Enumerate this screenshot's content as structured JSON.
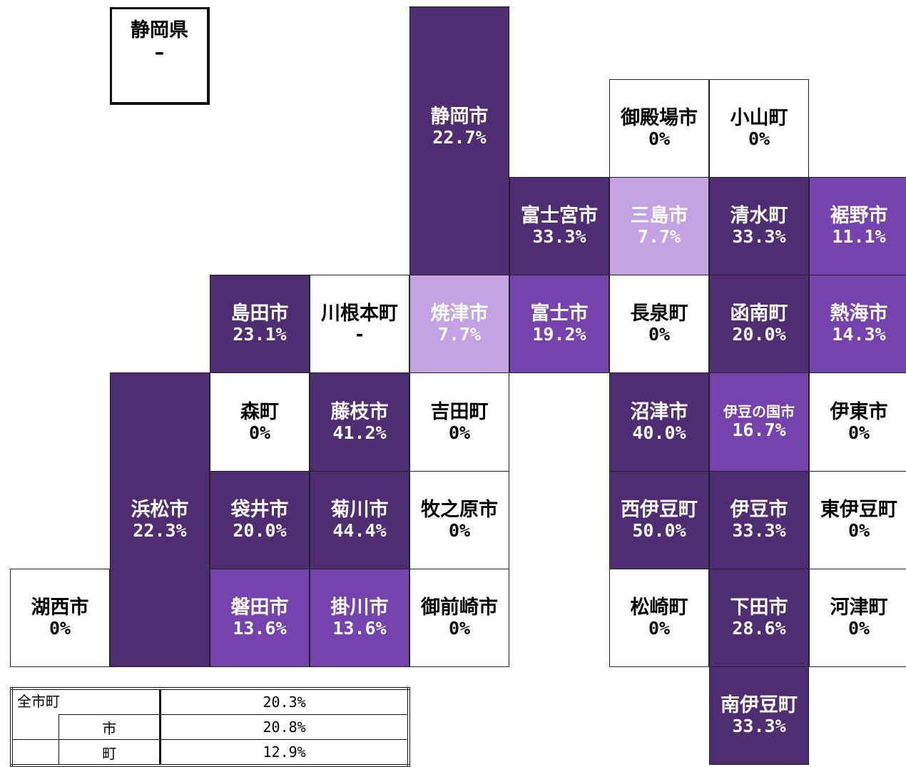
{
  "prefecture": {
    "name": "静岡県",
    "value": "–"
  },
  "tiles": [
    {
      "name": "静岡市",
      "value": "22.7%",
      "color": "#4f2d72"
    },
    {
      "name": "御殿場市",
      "value": "0%",
      "color": "#ffffff"
    },
    {
      "name": "小山町",
      "value": "0%",
      "color": "#ffffff"
    },
    {
      "name": "富士宮市",
      "value": "33.3%",
      "color": "#4f2d72"
    },
    {
      "name": "三島市",
      "value": "7.7%",
      "color": "#c3a3e3"
    },
    {
      "name": "清水町",
      "value": "33.3%",
      "color": "#4f2d72"
    },
    {
      "name": "裾野市",
      "value": "11.1%",
      "color": "#7443ad"
    },
    {
      "name": "島田市",
      "value": "23.1%",
      "color": "#4f2d72"
    },
    {
      "name": "川根本町",
      "value": "-",
      "color": "#ffffff"
    },
    {
      "name": "焼津市",
      "value": "7.7%",
      "color": "#c3a3e3"
    },
    {
      "name": "富士市",
      "value": "19.2%",
      "color": "#7443ad"
    },
    {
      "name": "長泉町",
      "value": "0%",
      "color": "#ffffff"
    },
    {
      "name": "函南町",
      "value": "20.0%",
      "color": "#4f2d72"
    },
    {
      "name": "熱海市",
      "value": "14.3%",
      "color": "#7443ad"
    },
    {
      "name": "浜松市",
      "value": "22.3%",
      "color": "#4f2d72"
    },
    {
      "name": "森町",
      "value": "0%",
      "color": "#ffffff"
    },
    {
      "name": "藤枝市",
      "value": "41.2%",
      "color": "#4f2d72"
    },
    {
      "name": "吉田町",
      "value": "0%",
      "color": "#ffffff"
    },
    {
      "name": "沼津市",
      "value": "40.0%",
      "color": "#4f2d72"
    },
    {
      "name": "伊豆の国市",
      "value": "16.7%",
      "color": "#7443ad"
    },
    {
      "name": "伊東市",
      "value": "0%",
      "color": "#ffffff"
    },
    {
      "name": "袋井市",
      "value": "20.0%",
      "color": "#4f2d72"
    },
    {
      "name": "菊川市",
      "value": "44.4%",
      "color": "#4f2d72"
    },
    {
      "name": "牧之原市",
      "value": "0%",
      "color": "#ffffff"
    },
    {
      "name": "西伊豆町",
      "value": "50.0%",
      "color": "#4f2d72"
    },
    {
      "name": "伊豆市",
      "value": "33.3%",
      "color": "#4f2d72"
    },
    {
      "name": "東伊豆町",
      "value": "0%",
      "color": "#ffffff"
    },
    {
      "name": "湖西市",
      "value": "0%",
      "color": "#ffffff"
    },
    {
      "name": "磐田市",
      "value": "13.6%",
      "color": "#7443ad"
    },
    {
      "name": "掛川市",
      "value": "13.6%",
      "color": "#7443ad"
    },
    {
      "name": "御前崎市",
      "value": "0%",
      "color": "#ffffff"
    },
    {
      "name": "松崎町",
      "value": "0%",
      "color": "#ffffff"
    },
    {
      "name": "下田市",
      "value": "28.6%",
      "color": "#4f2d72"
    },
    {
      "name": "河津町",
      "value": "0%",
      "color": "#ffffff"
    },
    {
      "name": "南伊豆町",
      "value": "33.3%",
      "color": "#4f2d72"
    }
  ],
  "summary": {
    "all_label": "全市町",
    "all_value": "20.3%",
    "city_label": "市",
    "city_value": "20.8%",
    "town_label": "町",
    "town_value": "12.9%"
  }
}
